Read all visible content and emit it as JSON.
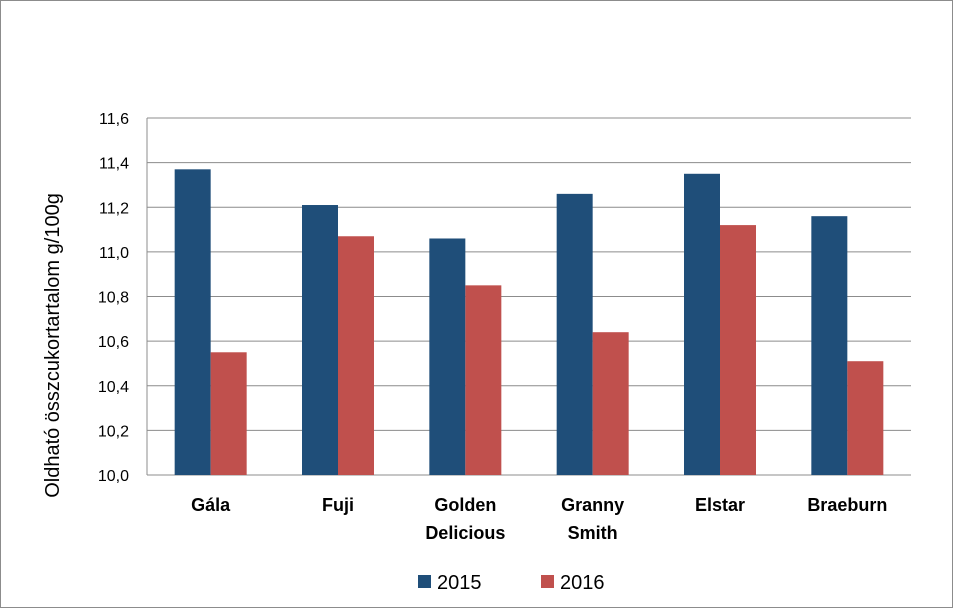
{
  "chart_data": {
    "type": "bar",
    "title": "",
    "ylabel": "Oldható összcukortartalom g/100g",
    "xlabel": "",
    "ylim": [
      10.0,
      11.6
    ],
    "yticks": [
      "10,0",
      "10,2",
      "10,4",
      "10,6",
      "10,8",
      "11,0",
      "11,2",
      "11,4",
      "11,6"
    ],
    "ytick_values": [
      10.0,
      10.2,
      10.4,
      10.6,
      10.8,
      11.0,
      11.2,
      11.4,
      11.6
    ],
    "grid": true,
    "legend": "bottom",
    "categories": [
      [
        "Gála"
      ],
      [
        "Fuji"
      ],
      [
        "Golden",
        "Delicious"
      ],
      [
        "Granny",
        "Smith"
      ],
      [
        "Elstar"
      ],
      [
        "Braeburn"
      ]
    ],
    "series": [
      {
        "name": "2015",
        "color": "#1f4e79",
        "values": [
          11.37,
          11.21,
          11.06,
          11.26,
          11.35,
          11.16
        ]
      },
      {
        "name": "2016",
        "color": "#c0504d",
        "values": [
          10.55,
          11.07,
          10.85,
          10.64,
          11.12,
          10.51
        ]
      }
    ]
  }
}
